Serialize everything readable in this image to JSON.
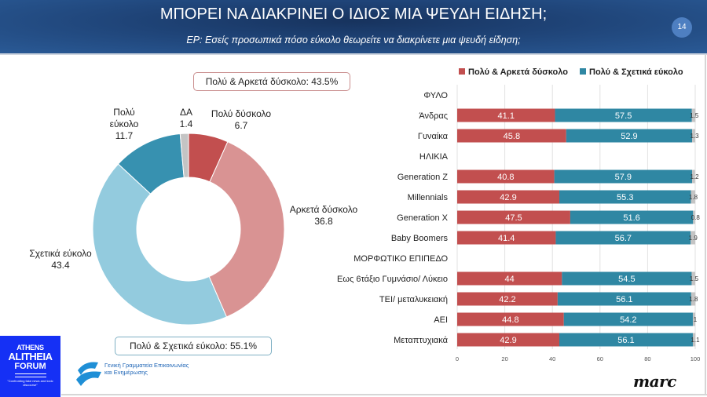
{
  "header": {
    "title": "ΜΠΟΡΕΙ ΝΑ ΔΙΑΚΡΙΝΕΙ Ο ΙΔΙΟΣ ΜΙΑ ΨΕΥΔΗ ΕΙΔΗΣΗ;",
    "subtitle": "ΕΡ: Εσείς προσωπικά πόσο εύκολο θεωρείτε να διακρίνετε μια ψευδή είδηση;",
    "page_number": "14"
  },
  "callouts": {
    "hard": "Πολύ & Αρκετά δύσκολο: 43.5%",
    "easy": "Πολύ & Σχετικά εύκολο: 55.1%"
  },
  "logos": {
    "forum": {
      "line1": "ATHENS",
      "line2": "ALITHEIA",
      "line3": "FORUM",
      "tagline": "\"Confronting fake news and toxic discourse\""
    },
    "gov": {
      "line1": "Γενική Γραμματεία Επικοινωνίας",
      "line2": "και Ενημέρωσης"
    },
    "marc": "marc"
  },
  "colors": {
    "very_hard": "#c24f4f",
    "quite_hard": "#d99393",
    "relatively_easy": "#93cbde",
    "very_easy": "#3791b0",
    "dk": "#c4c4c4",
    "bar_hard": "#c24f4f",
    "bar_easy": "#2f87a3",
    "bar_dk": "#c4c4c4"
  },
  "chart_data": [
    {
      "type": "pie",
      "variant": "donut",
      "slices": [
        {
          "label": "Πολύ δύσκολο",
          "value": 6.7,
          "color_key": "very_hard"
        },
        {
          "label": "Αρκετά δύσκολο",
          "value": 36.8,
          "color_key": "quite_hard"
        },
        {
          "label": "Σχετικά εύκολο",
          "value": 43.4,
          "color_key": "relatively_easy"
        },
        {
          "label": "Πολύ εύκολο",
          "value": 11.7,
          "color_key": "very_easy"
        },
        {
          "label": "ΔΑ",
          "value": 1.4,
          "color_key": "dk"
        }
      ],
      "labels_display": [
        {
          "lines": [
            "Πολύ δύσκολο",
            "6.7"
          ]
        },
        {
          "lines": [
            "Αρκετά δύσκολο",
            "36.8"
          ]
        },
        {
          "lines": [
            "Σχετικά εύκολο",
            "43.4"
          ]
        },
        {
          "lines": [
            "Πολύ",
            "εύκολο",
            "11.7"
          ]
        },
        {
          "lines": [
            "ΔΑ",
            "1.4"
          ]
        }
      ]
    },
    {
      "type": "bar",
      "orientation": "horizontal",
      "stacked": true,
      "legend": [
        "Πολύ & Αρκετά δύσκολο",
        "Πολύ & Σχετικά εύκολο"
      ],
      "legend_position": "top",
      "xlim": [
        0,
        100
      ],
      "xticks": [
        "0",
        "20",
        "40",
        "60",
        "80",
        "100"
      ],
      "grid": true,
      "rows": [
        {
          "label": "ΦΥΛΟ",
          "header": true
        },
        {
          "label": "Άνδρας",
          "hard": 41.1,
          "easy": 57.5,
          "dk": 1.5
        },
        {
          "label": "Γυναίκα",
          "hard": 45.8,
          "easy": 52.9,
          "dk": 1.3
        },
        {
          "label": "ΗΛΙΚΙΑ",
          "header": true
        },
        {
          "label": "Generation Z",
          "hard": 40.8,
          "easy": 57.9,
          "dk": 1.2
        },
        {
          "label": "Millennials",
          "hard": 42.9,
          "easy": 55.3,
          "dk": 1.8
        },
        {
          "label": "Generation X",
          "hard": 47.5,
          "easy": 51.6,
          "dk": 0.8
        },
        {
          "label": "Baby Boomers",
          "hard": 41.4,
          "easy": 56.7,
          "dk": 1.9
        },
        {
          "label": "ΜΟΡΦΩΤΙΚΟ ΕΠΙΠΕΔΟ",
          "header": true
        },
        {
          "label": "Εως 6τάξιο Γυμνάσιο/ Λύκειο",
          "hard": 44,
          "easy": 54.5,
          "dk": 1.5
        },
        {
          "label": "ΤΕΙ/ μεταλυκειακή",
          "hard": 42.2,
          "easy": 56.1,
          "dk": 1.8
        },
        {
          "label": "ΑΕΙ",
          "hard": 44.8,
          "easy": 54.2,
          "dk": 1
        },
        {
          "label": "Μεταπτυχιακά",
          "hard": 42.9,
          "easy": 56.1,
          "dk": 1.1
        }
      ]
    }
  ]
}
